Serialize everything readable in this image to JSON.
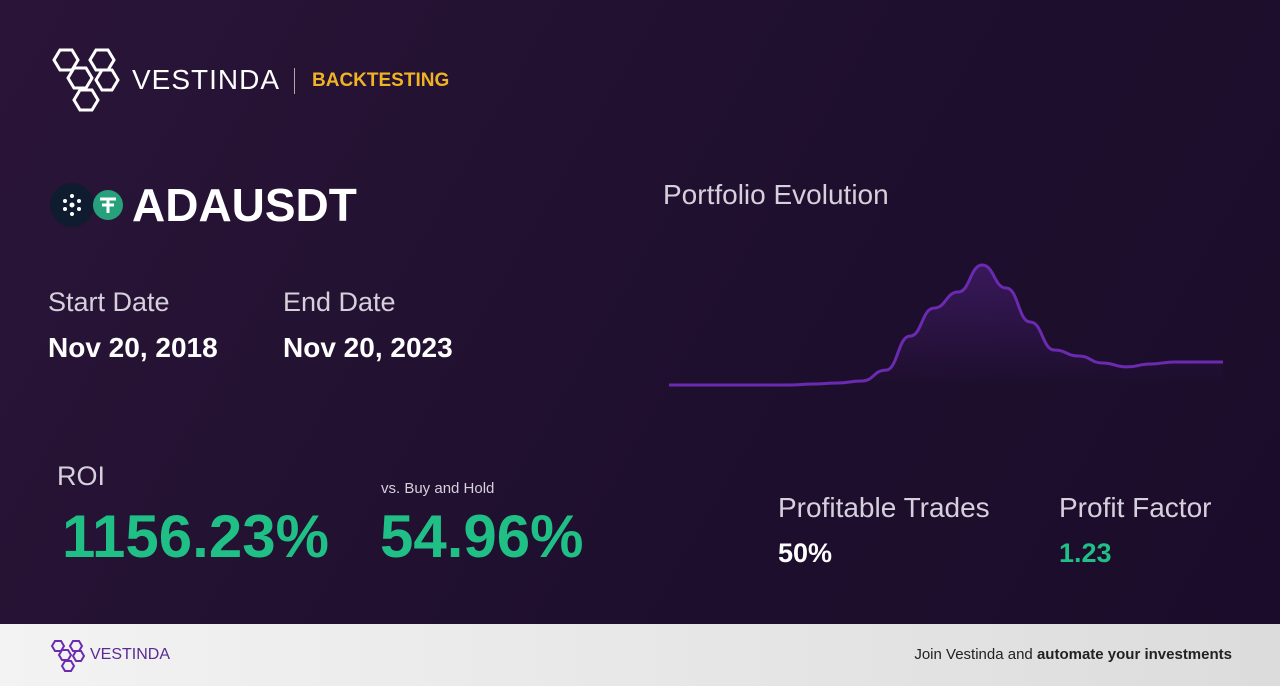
{
  "header": {
    "brand": "VESTINDA",
    "section": "BACKTESTING"
  },
  "pair": "ADAUSDT",
  "dates": {
    "start_label": "Start Date",
    "start": "Nov 20, 2018",
    "end_label": "End Date",
    "end": "Nov 20, 2023"
  },
  "chart_data": {
    "type": "line",
    "title": "Portfolio Evolution",
    "color": "#6a2bb0",
    "values": [
      1,
      1,
      1,
      1,
      1,
      1,
      1.5,
      2,
      3,
      8.5,
      25.6,
      39.7,
      47.8,
      61.4,
      49.8,
      32.7,
      18.6,
      15.6,
      12.1,
      10.1,
      11.6,
      12.6,
      12.6,
      12.6
    ]
  },
  "stats": {
    "roi_label": "ROI",
    "roi": "1156.23%",
    "vs_label": "vs. Buy and Hold",
    "vs": "54.96%",
    "trades_label": "Profitable Trades",
    "trades": "50%",
    "factor_label": "Profit Factor",
    "factor": "1.23"
  },
  "footer": {
    "brand": "VESTINDA",
    "cta_plain": "Join Vestinda and ",
    "cta_bold": "automate your investments"
  }
}
